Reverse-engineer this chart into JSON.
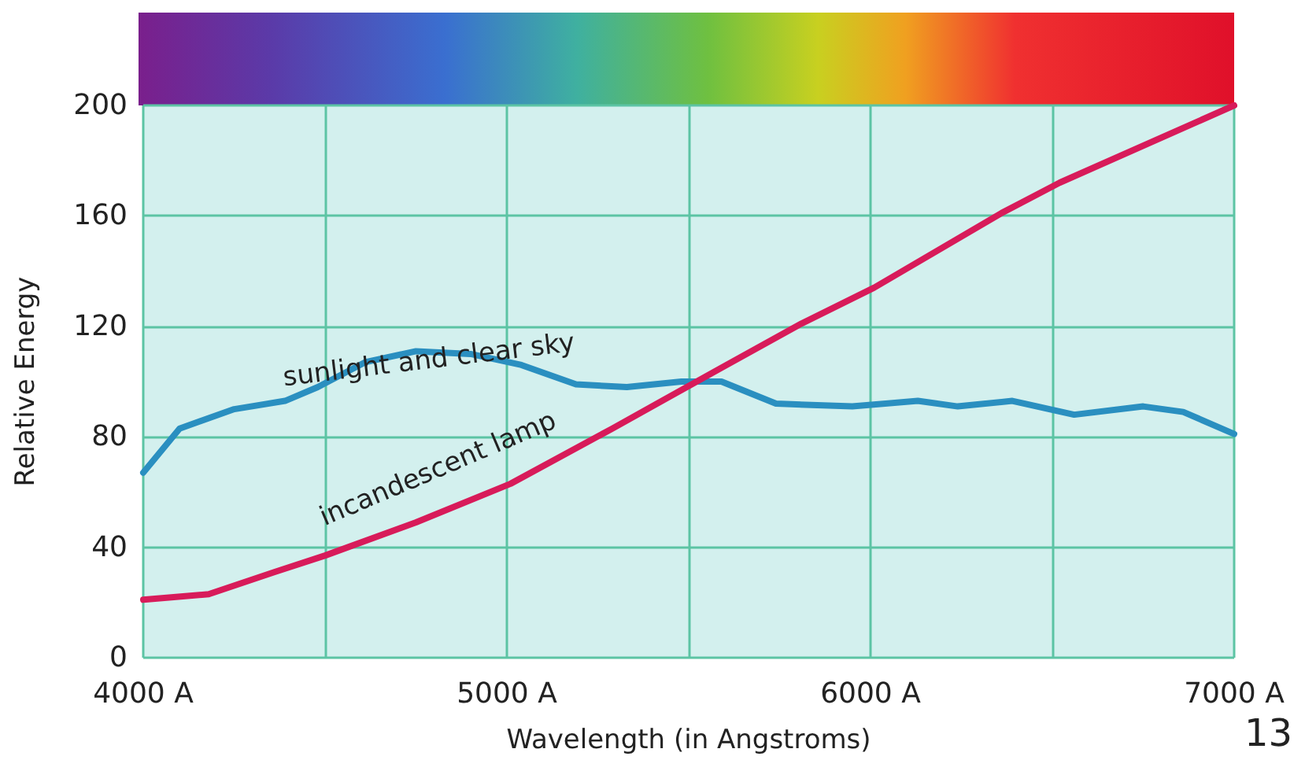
{
  "chart_data": {
    "type": "line",
    "xlabel": "Wavelength (in Angstroms)",
    "ylabel": "Relative Energy",
    "xlim": [
      4000,
      7000
    ],
    "xticks": [
      {
        "value": 4000,
        "label": "4000 A"
      },
      {
        "value": 4500,
        "label": null
      },
      {
        "value": 5000,
        "label": "5000 A"
      },
      {
        "value": 5500,
        "label": null
      },
      {
        "value": 6000,
        "label": "6000 A"
      },
      {
        "value": 6500,
        "label": null
      },
      {
        "value": 7000,
        "label": "7000 A"
      }
    ],
    "ylim": [
      0,
      200
    ],
    "yticks": [
      0,
      40,
      80,
      120,
      160,
      200
    ],
    "grid": true,
    "legend": false,
    "marker": "none",
    "line_style": "solid",
    "annotations": [
      "13"
    ],
    "series": [
      {
        "name": "sunlight and clear sky",
        "color": "#2a8fc0",
        "x": [
          4000,
          4100,
          4250,
          4390,
          4480,
          4610,
          4750,
          4900,
          5040,
          5190,
          5330,
          5480,
          5590,
          5740,
          5950,
          6130,
          6240,
          6390,
          6560,
          6750,
          6860,
          7000
        ],
        "values": [
          67,
          83,
          90,
          93,
          98,
          107,
          111,
          110,
          106,
          99,
          98,
          100,
          100,
          92,
          91,
          93,
          91,
          93,
          88,
          91,
          89,
          81
        ]
      },
      {
        "name": "incandescent lamp",
        "color": "#d81b5a",
        "x": [
          4000,
          4180,
          4360,
          4500,
          4750,
          5010,
          5290,
          5590,
          5810,
          6010,
          6360,
          6520,
          7000
        ],
        "values": [
          21,
          23,
          31,
          37,
          49,
          63,
          83,
          105,
          121,
          134,
          161,
          172,
          200
        ]
      }
    ]
  }
}
